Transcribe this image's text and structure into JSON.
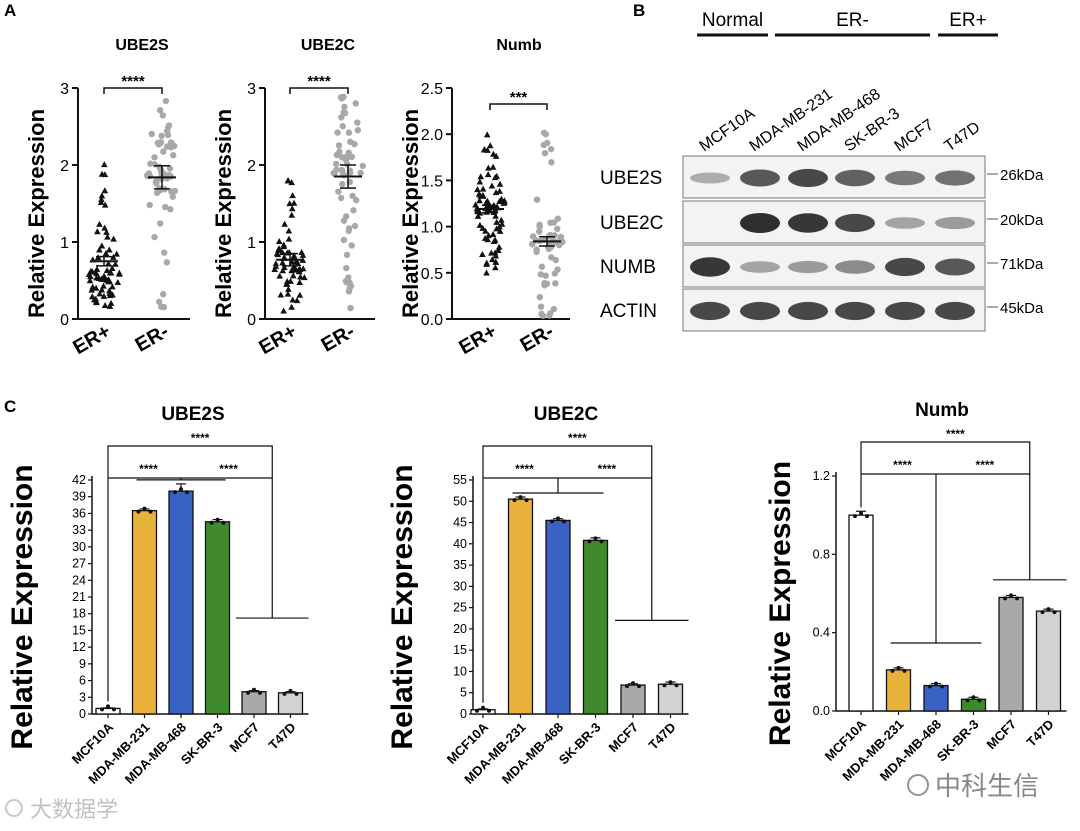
{
  "panel_labels": {
    "a": "A",
    "b": "B",
    "c": "C"
  },
  "watermarks": {
    "left": "大数据学",
    "right": "中科生信"
  },
  "colors": {
    "black": "#111111",
    "gray_dots": "#a8a8a8",
    "white_bar": "#ffffff",
    "yellow": "#e8b23a",
    "blue": "#3a62c4",
    "green": "#3f8a2c",
    "gray_bar": "#a9a9a9",
    "lightgray_bar": "#d2d2d2"
  },
  "western_blot": {
    "groups": [
      "Normal",
      "ER-",
      "ER+"
    ],
    "cell_lines": [
      "MCF10A",
      "MDA-MB-231",
      "MDA-MB-468",
      "SK-BR-3",
      "MCF7",
      "T47D"
    ],
    "rows": [
      {
        "protein": "UBE2S",
        "weight": "26kDa",
        "intensity": [
          0.25,
          0.75,
          0.85,
          0.7,
          0.55,
          0.6
        ]
      },
      {
        "protein": "UBE2C",
        "weight": "20kDa",
        "intensity": [
          0.0,
          1.0,
          0.95,
          0.85,
          0.3,
          0.35
        ]
      },
      {
        "protein": "NUMB",
        "weight": "71kDa",
        "intensity": [
          0.95,
          0.3,
          0.35,
          0.45,
          0.85,
          0.75
        ]
      },
      {
        "protein": "ACTIN",
        "weight": "45kDa",
        "intensity": [
          0.85,
          0.85,
          0.85,
          0.85,
          0.85,
          0.85
        ]
      }
    ]
  },
  "chart_data": [
    {
      "type": "scatter",
      "panel": "A",
      "title": "UBE2S",
      "ylabel": "Relative Expression",
      "ylim": [
        0,
        3
      ],
      "yticks": [
        0,
        1,
        2,
        3
      ],
      "ytick_labels": [
        "0",
        "1",
        "2",
        "3"
      ],
      "categories": [
        "ER+",
        "ER-"
      ],
      "series": [
        {
          "name": "ER+",
          "marker": "triangle",
          "mean": 0.75,
          "sem": 0.06,
          "n": 70,
          "min": 0.15,
          "max": 2.1,
          "median": 0.6
        },
        {
          "name": "ER-",
          "marker": "circle",
          "mean": 1.84,
          "sem": 0.15,
          "n": 60,
          "min": 0.15,
          "max": 2.95,
          "median": 1.85
        }
      ],
      "significance": "****"
    },
    {
      "type": "scatter",
      "panel": "A",
      "title": "UBE2C",
      "ylabel": "Relative Expression",
      "ylim": [
        0,
        3
      ],
      "yticks": [
        0,
        1,
        2,
        3
      ],
      "ytick_labels": [
        "0",
        "1",
        "2",
        "3"
      ],
      "categories": [
        "ER+",
        "ER-"
      ],
      "series": [
        {
          "name": "ER+",
          "marker": "triangle",
          "mean": 0.77,
          "sem": 0.08,
          "n": 65,
          "min": 0.02,
          "max": 1.9,
          "median": 0.65
        },
        {
          "name": "ER-",
          "marker": "circle",
          "mean": 1.85,
          "sem": 0.15,
          "n": 60,
          "min": 0.05,
          "max": 2.9,
          "median": 1.9
        }
      ],
      "significance": "****"
    },
    {
      "type": "scatter",
      "panel": "A",
      "title": "Numb",
      "ylabel": "Relative Expression",
      "ylim": [
        0,
        2.5
      ],
      "yticks": [
        0,
        0.5,
        1.0,
        1.5,
        2.0,
        2.5
      ],
      "ytick_labels": [
        "0.0",
        "0.5",
        "1.0",
        "1.5",
        "2.0",
        "2.5"
      ],
      "categories": [
        "ER+",
        "ER-"
      ],
      "series": [
        {
          "name": "ER+",
          "marker": "triangle",
          "mean": 1.19,
          "sem": 0.04,
          "n": 80,
          "min": 0.4,
          "max": 2.0,
          "median": 1.2
        },
        {
          "name": "ER-",
          "marker": "circle",
          "mean": 0.84,
          "sem": 0.05,
          "n": 55,
          "min": 0.02,
          "max": 2.15,
          "median": 0.85
        }
      ],
      "significance": "***"
    },
    {
      "type": "bar",
      "panel": "C",
      "title": "UBE2S",
      "ylabel": "Relative Expression",
      "ylim": [
        0,
        42
      ],
      "yticks": [
        0,
        3,
        6,
        9,
        12,
        15,
        18,
        21,
        24,
        27,
        30,
        33,
        36,
        39,
        42
      ],
      "ytick_labels": [
        "0",
        "3",
        "6",
        "9",
        "12",
        "15",
        "18",
        "21",
        "24",
        "27",
        "30",
        "33",
        "36",
        "39",
        "42"
      ],
      "categories": [
        "MCF10A",
        "MDA-MB-231",
        "MDA-MB-468",
        "SK-BR-3",
        "MCF7",
        "T47D"
      ],
      "values": [
        1.0,
        36.5,
        40.0,
        34.5,
        4.0,
        3.8
      ],
      "errors": [
        0.1,
        0.3,
        1.3,
        0.4,
        0.2,
        0.2
      ],
      "significance": [
        "****",
        "****",
        "****"
      ]
    },
    {
      "type": "bar",
      "panel": "C",
      "title": "UBE2C",
      "ylabel": "Relative Expression",
      "ylim": [
        0,
        55
      ],
      "yticks": [
        0,
        5,
        10,
        15,
        20,
        25,
        30,
        35,
        40,
        45,
        50,
        55
      ],
      "ytick_labels": [
        "0",
        "5",
        "10",
        "15",
        "20",
        "25",
        "30",
        "35",
        "40",
        "45",
        "50",
        "55"
      ],
      "categories": [
        "MCF10A",
        "MDA-MB-231",
        "MDA-MB-468",
        "SK-BR-3",
        "MCF7",
        "T47D"
      ],
      "values": [
        1.0,
        50.5,
        45.5,
        40.8,
        6.8,
        7.0
      ],
      "errors": [
        0.2,
        0.5,
        0.4,
        0.6,
        0.3,
        0.5
      ],
      "significance": [
        "****",
        "****",
        "****"
      ]
    },
    {
      "type": "bar",
      "panel": "C",
      "title": "Numb",
      "ylabel": "Relative Expression",
      "ylim": [
        0,
        1.2
      ],
      "yticks": [
        0,
        0.4,
        0.8,
        1.2
      ],
      "ytick_labels": [
        "0.0",
        "0.4",
        "0.8",
        "1.2"
      ],
      "categories": [
        "MCF10A",
        "MDA-MB-231",
        "MDA-MB-468",
        "SK-BR-3",
        "MCF7",
        "T47D"
      ],
      "values": [
        1.0,
        0.21,
        0.13,
        0.06,
        0.58,
        0.51
      ],
      "errors": [
        0.02,
        0.01,
        0.01,
        0.01,
        0.01,
        0.01
      ],
      "significance": [
        "****",
        "****",
        "****"
      ]
    }
  ]
}
